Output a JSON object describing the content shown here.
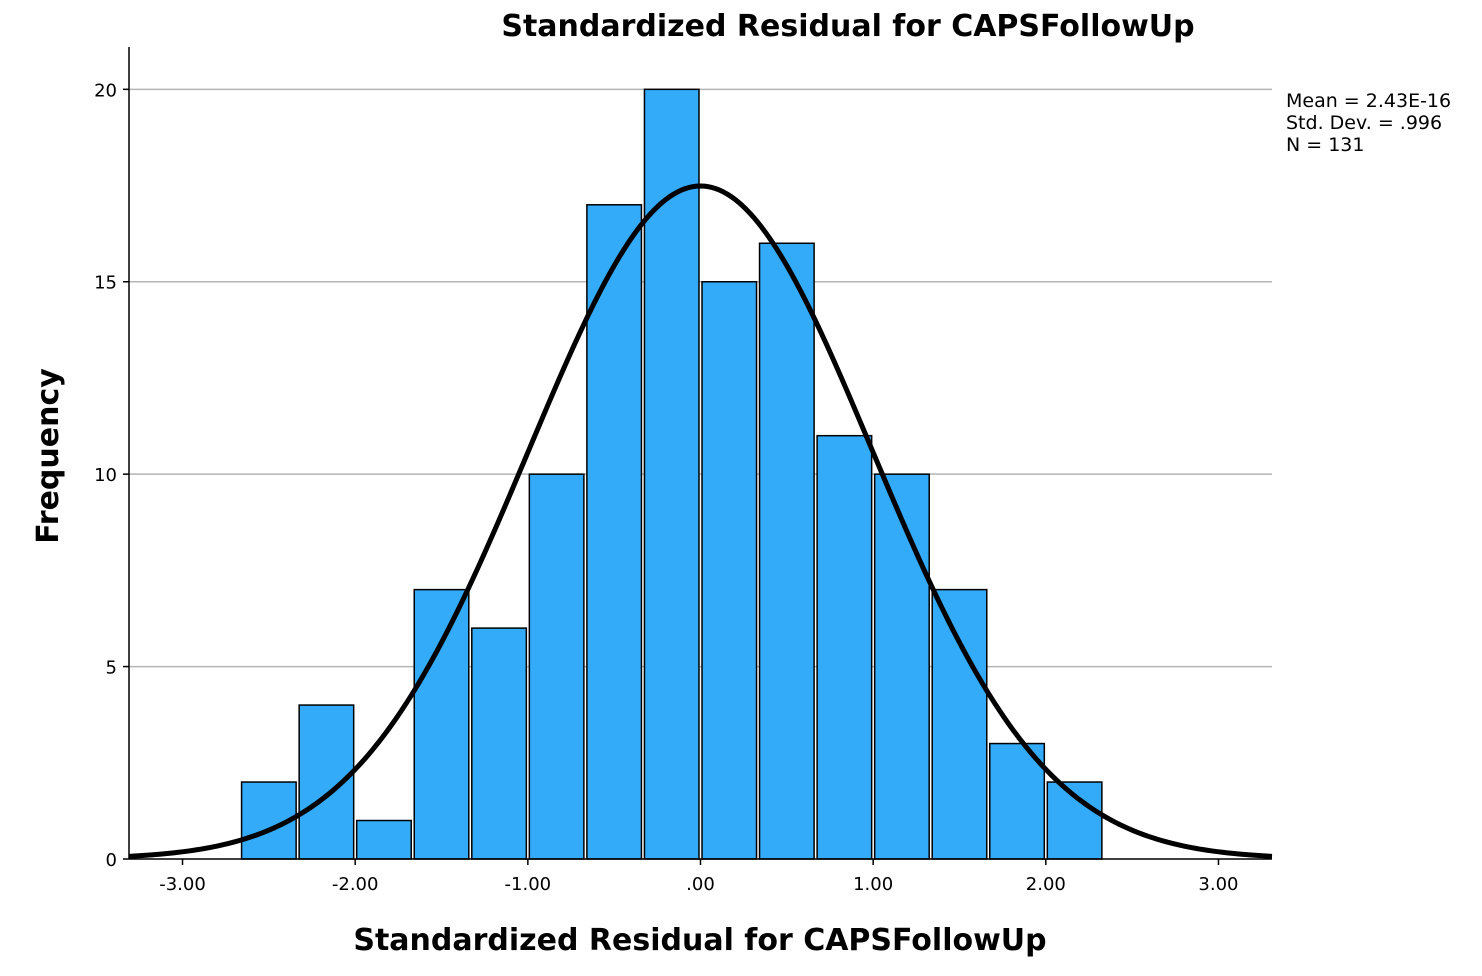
{
  "chart_data": {
    "type": "bar",
    "title": "Standardized Residual for CAPSFollowUp",
    "xlabel": "Standardized Residual for CAPSFollowUp",
    "ylabel": "Frequency",
    "xlim": [
      -3.31,
      3.31
    ],
    "ylim": [
      0,
      21.1
    ],
    "x_ticks": [
      "-3.00",
      "-2.00",
      "-1.00",
      ".00",
      "1.00",
      "2.00",
      "3.00"
    ],
    "x_tick_values": [
      -3,
      -2,
      -1,
      0,
      1,
      2,
      3
    ],
    "y_ticks": [
      "0",
      "5",
      "10",
      "15",
      "20"
    ],
    "y_tick_values": [
      0,
      5,
      10,
      15,
      20
    ],
    "grid": true,
    "bin_width": 0.3333,
    "bins": [
      {
        "start": -2.6667,
        "end": -2.3333,
        "count": 2
      },
      {
        "start": -2.3333,
        "end": -2.0,
        "count": 4
      },
      {
        "start": -2.0,
        "end": -1.6667,
        "count": 1
      },
      {
        "start": -1.6667,
        "end": -1.3333,
        "count": 7
      },
      {
        "start": -1.3333,
        "end": -1.0,
        "count": 6
      },
      {
        "start": -1.0,
        "end": -0.6667,
        "count": 10
      },
      {
        "start": -0.6667,
        "end": -0.3333,
        "count": 17
      },
      {
        "start": -0.3333,
        "end": 0.0,
        "count": 20
      },
      {
        "start": 0.0,
        "end": 0.3333,
        "count": 15
      },
      {
        "start": 0.3333,
        "end": 0.6667,
        "count": 16
      },
      {
        "start": 0.6667,
        "end": 1.0,
        "count": 11
      },
      {
        "start": 1.0,
        "end": 1.3333,
        "count": 10
      },
      {
        "start": 1.3333,
        "end": 1.6667,
        "count": 7
      },
      {
        "start": 1.6667,
        "end": 2.0,
        "count": 3
      },
      {
        "start": 2.0,
        "end": 2.3333,
        "count": 2
      }
    ],
    "normal_curve": {
      "mean": 0,
      "std_dev": 0.996,
      "n": 131
    },
    "bar_color": "#33abf9",
    "bar_edge_color": "#000000",
    "curve_color": "#000000",
    "stats": {
      "mean": "Mean = 2.43E-16",
      "std_dev": "Std. Dev. = .996",
      "n": "N = 131"
    },
    "stats_position": "top-right"
  }
}
